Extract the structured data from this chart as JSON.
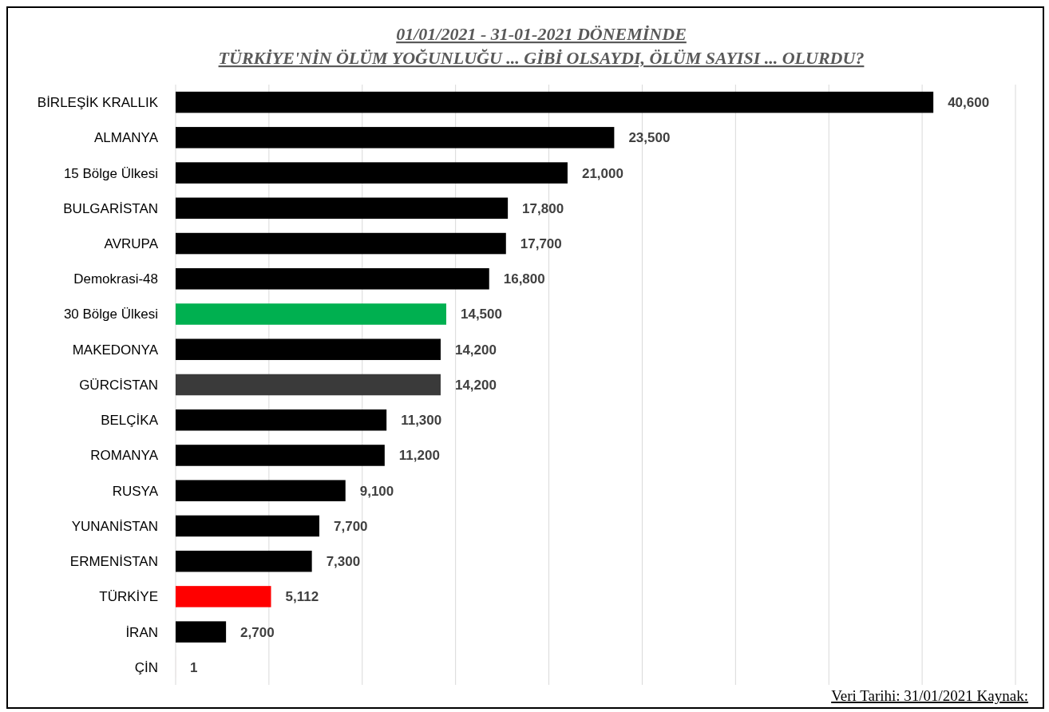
{
  "chart_data": {
    "type": "bar",
    "orientation": "horizontal",
    "title": "01/01/2021 - 31-01-2021 DÖNEMİNDE",
    "subtitle": "TÜRKİYE'NİN ÖLÜM YOĞUNLUĞU ... GİBİ OLSAYDI, ÖLÜM SAYISI ... OLURDU?",
    "categories": [
      "BİRLEŞİK KRALLIK",
      "ALMANYA",
      "15 Bölge Ülkesi",
      "BULGARİSTAN",
      "AVRUPA",
      "Demokrasi-48",
      "30 Bölge Ülkesi",
      "MAKEDONYA",
      "GÜRCİSTAN",
      "BELÇİKA",
      "ROMANYA",
      "RUSYA",
      "YUNANİSTAN",
      "ERMENİSTAN",
      "TÜRKİYE",
      "İRAN",
      "ÇİN"
    ],
    "values": [
      40600,
      23500,
      21000,
      17800,
      17700,
      16800,
      14500,
      14200,
      14200,
      11300,
      11200,
      9100,
      7700,
      7300,
      5112,
      2700,
      1
    ],
    "colors": [
      "#000000",
      "#000000",
      "#000000",
      "#000000",
      "#000000",
      "#000000",
      "#00b050",
      "#000000",
      "#3a3a3a",
      "#000000",
      "#000000",
      "#000000",
      "#000000",
      "#000000",
      "#ff0000",
      "#000000",
      "#c00000"
    ],
    "xlim": [
      0,
      45000
    ],
    "xticks": [
      {
        "value": 0,
        "label": null
      },
      {
        "value": 5000,
        "label": null
      },
      {
        "value": 10000,
        "label": null
      },
      {
        "value": 15000,
        "label": null
      },
      {
        "value": 20000,
        "label": null
      },
      {
        "value": 25000,
        "label": null
      },
      {
        "value": 30000,
        "label": null
      },
      {
        "value": 35000,
        "label": null
      },
      {
        "value": 40000,
        "label": null
      },
      {
        "value": 45000,
        "label": null
      }
    ],
    "value_labels": [
      "40,600",
      "23,500",
      "21,000",
      "17,800",
      "17,700",
      "16,800",
      "14,500",
      "14,200",
      "14,200",
      "11,300",
      "11,200",
      "9,100",
      "7,700",
      "7,300",
      "5,112",
      "2,700",
      "1"
    ],
    "grid": "x",
    "tick_labels": "y",
    "annotations": [
      "Veri Tarihi:  31/01/2021  Kaynak:"
    ]
  }
}
